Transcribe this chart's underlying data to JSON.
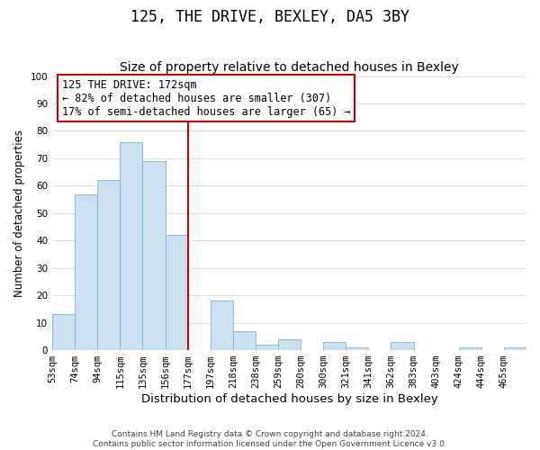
{
  "title": "125, THE DRIVE, BEXLEY, DA5 3BY",
  "subtitle": "Size of property relative to detached houses in Bexley",
  "xlabel": "Distribution of detached houses by size in Bexley",
  "ylabel": "Number of detached properties",
  "bar_labels": [
    "53sqm",
    "74sqm",
    "94sqm",
    "115sqm",
    "135sqm",
    "156sqm",
    "177sqm",
    "197sqm",
    "218sqm",
    "238sqm",
    "259sqm",
    "280sqm",
    "300sqm",
    "321sqm",
    "341sqm",
    "362sqm",
    "383sqm",
    "403sqm",
    "424sqm",
    "444sqm",
    "465sqm"
  ],
  "bar_values": [
    13,
    57,
    62,
    76,
    69,
    42,
    0,
    18,
    7,
    2,
    4,
    0,
    3,
    1,
    0,
    3,
    0,
    0,
    1,
    0,
    1
  ],
  "bar_color": "#cce0f0",
  "bar_edge_color": "#7ab5d8",
  "vline_x": 6,
  "vline_color": "#cc0000",
  "ylim": [
    0,
    100
  ],
  "annotation_text": "125 THE DRIVE: 172sqm\n← 82% of detached houses are smaller (307)\n17% of semi-detached houses are larger (65) →",
  "annotation_box_color": "#ffffff",
  "annotation_box_edge": "#cc0000",
  "footer_line1": "Contains HM Land Registry data © Crown copyright and database right 2024.",
  "footer_line2": "Contains public sector information licensed under the Open Government Licence v3.0.",
  "title_fontsize": 12,
  "subtitle_fontsize": 10,
  "xlabel_fontsize": 9.5,
  "ylabel_fontsize": 8.5,
  "tick_fontsize": 7.5,
  "annotation_fontsize": 8.5,
  "footer_fontsize": 6.5
}
